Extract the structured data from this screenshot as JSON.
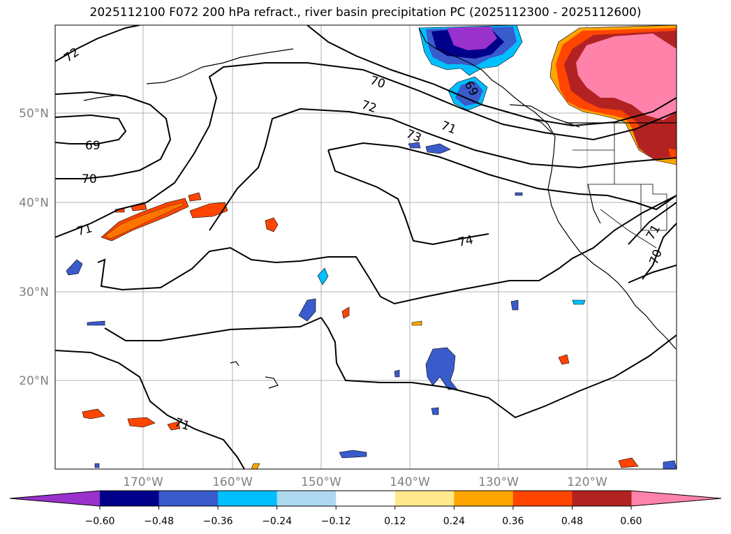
{
  "title": "2025112100 F072 200 hPa refract., river basin precipitation PC (2025112300 - 2025112600)",
  "map": {
    "lat_labels": [
      "50°N",
      "40°N",
      "30°N",
      "20°N"
    ],
    "lon_labels": [
      "170°W",
      "160°W",
      "150°W",
      "140°W",
      "130°W",
      "120°W"
    ],
    "contour_labels": [
      "72",
      "70",
      "72",
      "71",
      "73",
      "69",
      "70",
      "71",
      "74",
      "71",
      "70",
      "71",
      "69"
    ]
  },
  "colorbar": {
    "colors": [
      "#9932cc",
      "#00008b",
      "#3a5bcc",
      "#00bfff",
      "#add8f0",
      "#ffffff",
      "#ffe98c",
      "#ffa500",
      "#ff4500",
      "#b22222",
      "#ff82ab"
    ],
    "low_extend_color": "#9932cc",
    "high_extend_color": "#ff82ab",
    "ticks": [
      "−0.60",
      "−0.48",
      "−0.36",
      "−0.24",
      "−0.12",
      "0.12",
      "0.24",
      "0.36",
      "0.48",
      "0.60"
    ]
  }
}
